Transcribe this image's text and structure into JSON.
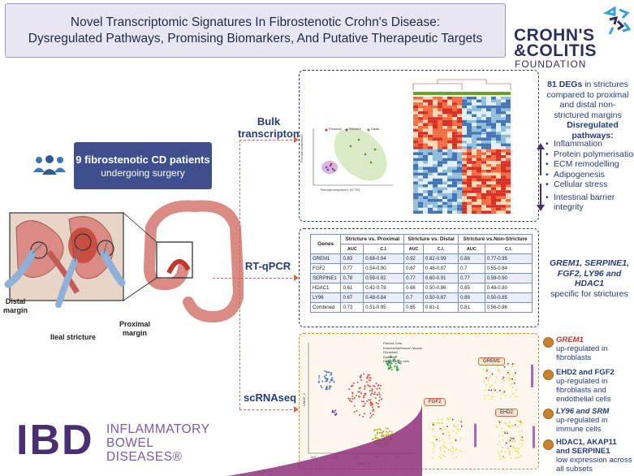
{
  "title": {
    "line1": "Novel Transcriptomic Signatures In Fibrostenotic Crohn's Disease:",
    "line2": "Dysregulated Pathways, Promising Biomarkers, And Putative Therapeutic Targets"
  },
  "foundation": {
    "line1": "CROHN'S",
    "line2": "&COLITIS",
    "line3": "FOUNDATION"
  },
  "patients": {
    "line1": "9 fibrostenotic CD patients",
    "line2": "undergoing surgery"
  },
  "anatomy_labels": {
    "distal": "Distal\nmargin",
    "ileal": "Ileal stricture",
    "proximal": "Proximal\nmargin"
  },
  "methods": {
    "bulk": "Bulk\ntranscriptomic",
    "rtqpcr": "RT-qPCR",
    "scrna": "scRNAseq"
  },
  "bulk_results": {
    "degs_bold": "81 DEGs",
    "degs_rest": " in strictures compared to proximal and distal non-strictured margins",
    "pathways_title": "Disregulated pathways:",
    "pathways": [
      "Inflammation",
      "Protein polymerisation",
      "ECM remodelling",
      "Adipogenesis",
      "Cellular stress",
      "Intestinal barrier integrity"
    ]
  },
  "pca": {
    "legend": [
      "Proximal",
      "Stricture",
      "Distal"
    ],
    "xlabel": "Principal component 1 (47.7%)",
    "ylabel": "Principal component 2"
  },
  "rt_table": {
    "headers": [
      "Genes",
      "Stricture vs. Proximal",
      "Stricture vs. Distal",
      "Stricture vs.Non-Stricture"
    ],
    "subheaders": [
      "AUC",
      "C.I.",
      "AUC",
      "C.I.",
      "AUC",
      "C.I."
    ],
    "rows": [
      [
        "GREM1",
        "0.83",
        "0.68-0.94",
        "0.92",
        "0.82-0.99",
        "0.88",
        "0.77-0.95"
      ],
      [
        "FGF2",
        "0.77",
        "0.54-0.90",
        "0.67",
        "0.48-0.87",
        "0.7",
        "0.55-0.84"
      ],
      [
        "SERPINE1",
        "0.78",
        "0.59-0.92",
        "0.77",
        "0.60-0.91",
        "0.77",
        "0.59-0.90"
      ],
      [
        "HDAC1",
        "0.61",
        "0.42-0.78",
        "0.68",
        "0.50-0.86",
        "0.65",
        "0.48-0.80"
      ],
      [
        "LY96",
        "0.67",
        "0.48-0.84",
        "0.7",
        "0.50-0.87",
        "0.89",
        "0.50-0.85"
      ],
      [
        "Combined",
        "0.73",
        "0.51-0.95",
        "0.85",
        "0.61-1",
        "0.81",
        "0.56-0.96"
      ]
    ]
  },
  "rt_result": {
    "line1": "GREM1, SERPINE1,",
    "line2": "FGF2, LY96 and HDAC1",
    "line3": "specific for strictures"
  },
  "umap": {
    "legend": [
      "Plasma Cells",
      "Endothelial/Smooth Muscle",
      "Fibroblast",
      "Epithelial",
      "Dendritic-like cells"
    ],
    "xlabel": "UMAP_1",
    "ylabel": "UMAP_2",
    "xticks": [
      "-5.0",
      "-2.5",
      "0.0",
      "2.5",
      "5.0"
    ],
    "feature_tags": [
      "GREM1",
      "FGF2",
      "EHD2"
    ]
  },
  "sc_results": [
    {
      "bold": "GREM1",
      "rest": "up-regulated in fibroblasts"
    },
    {
      "bold": "EHD2 and FGF2",
      "rest": "up-regulated in fibroblasts and endothelial cells"
    },
    {
      "bold": "LY96 and SRM",
      "rest": "up-regulated in immune cells"
    },
    {
      "bold": "HDAC1, AKAP11 and SERPINE1",
      "rest": "low expression across all subsets"
    }
  ],
  "ibd": {
    "big": "IBD",
    "line1": "INFLAMMATORY",
    "line2": "BOWEL",
    "line3": "DISEASES®"
  },
  "colors": {
    "navy": "#263b78",
    "accent_orange": "#d46a4b",
    "patient_box": "#3e4f8e",
    "ibd_purple": "#4a2e72"
  }
}
